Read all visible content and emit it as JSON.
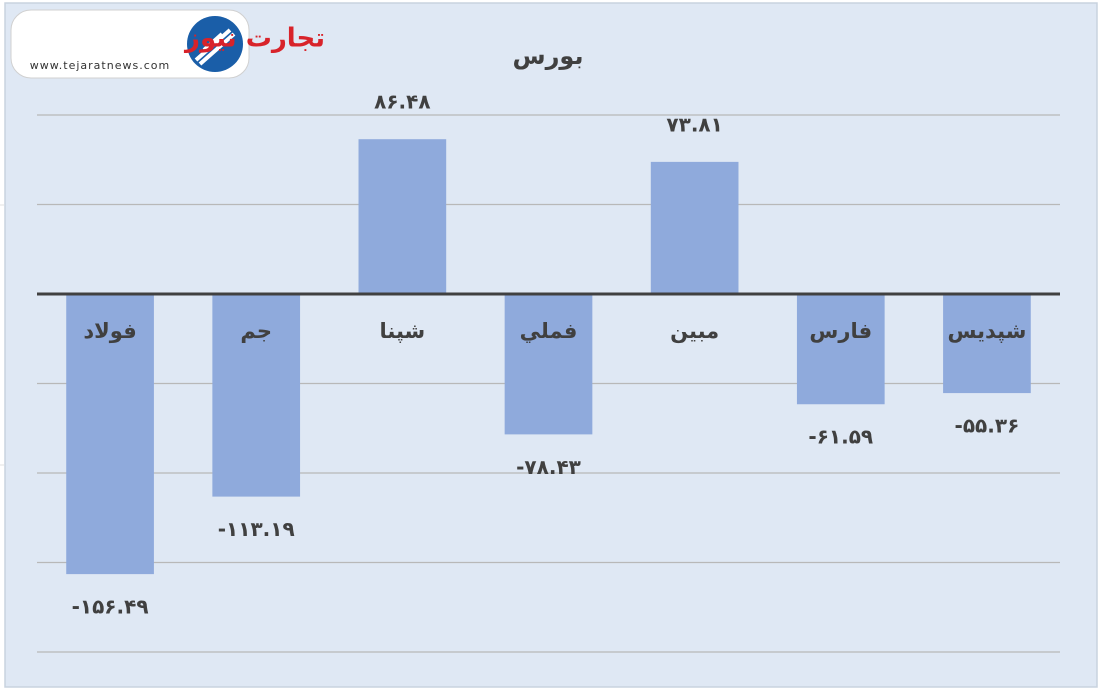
{
  "logo": {
    "name": "تجارت نیوز",
    "url": "www.tejaratnews.com"
  },
  "chart_data": {
    "type": "bar",
    "title": "بورس",
    "categories": [
      "فولاد",
      "جم",
      "شپنا",
      "فملي",
      "مبين",
      "فارس",
      "شپديس"
    ],
    "values": [
      -156.49,
      -113.19,
      86.48,
      -78.43,
      73.81,
      -61.59,
      -55.36
    ],
    "value_labels": [
      "-۱۵۶.۴۹",
      "-۱۱۳.۱۹",
      "۸۶.۴۸",
      "-۷۸.۴۳",
      "۷۳.۸۱",
      "-۶۱.۵۹",
      "-۵۵.۳۶"
    ],
    "color": "#8faadc",
    "ylim": [
      -200,
      100
    ],
    "yticks": [
      -200,
      -150,
      -100,
      -50,
      0,
      50,
      100
    ],
    "grid": true
  }
}
